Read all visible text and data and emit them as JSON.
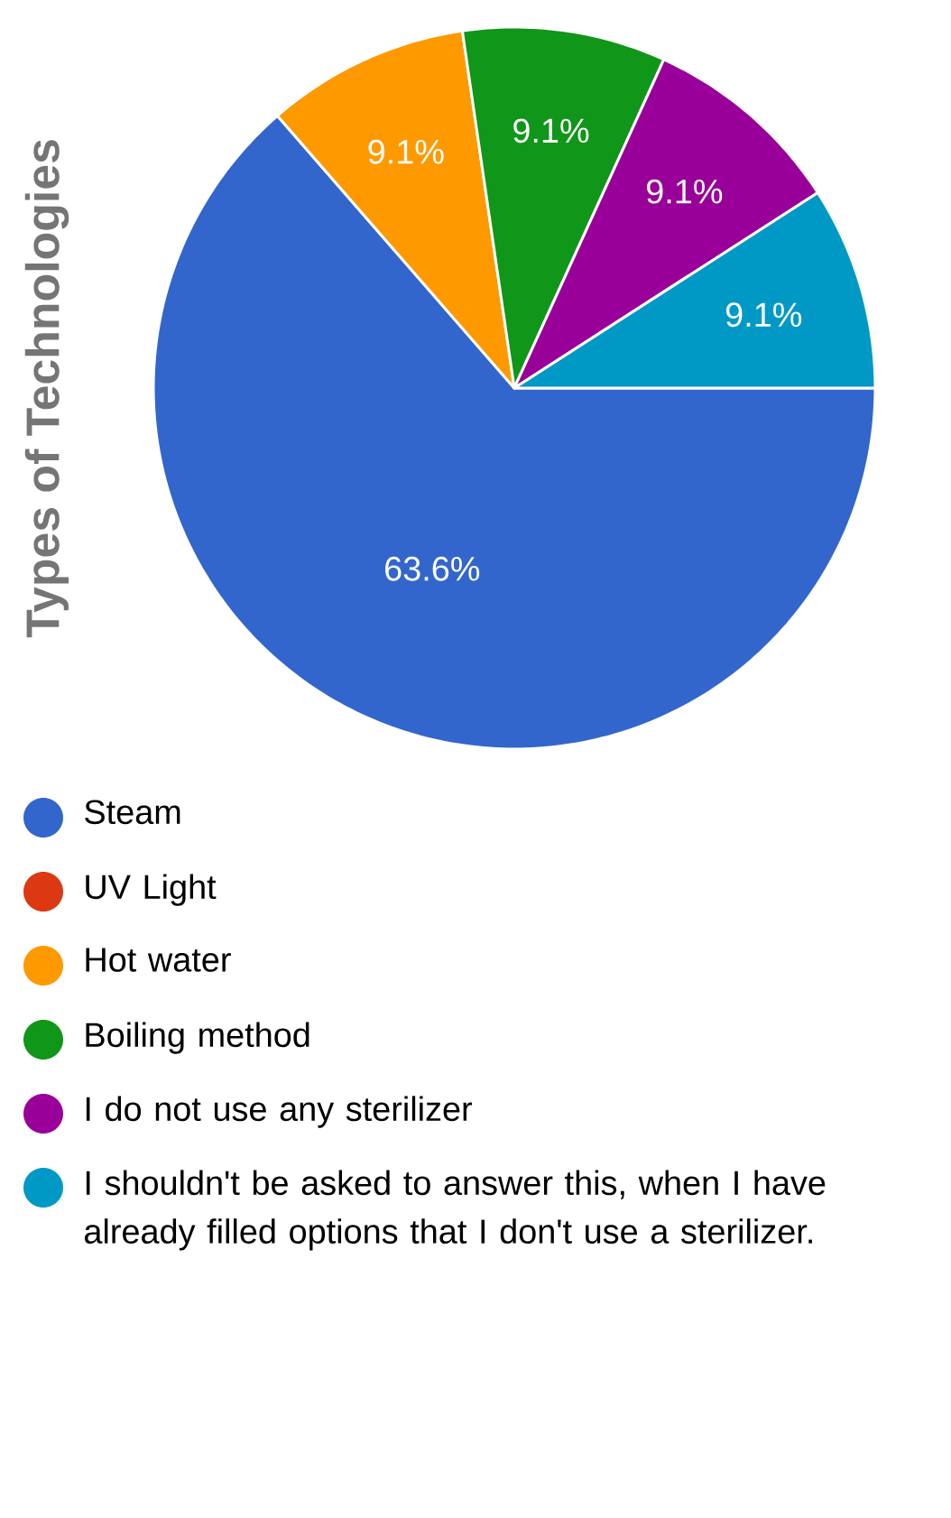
{
  "chart_data": {
    "type": "pie",
    "ylabel": "Types of Technologies",
    "categories": [
      "Steam",
      "UV Light",
      "Hot water",
      "Boiling method",
      "I do not use any sterilizer",
      "I shouldn't be asked to answer this, when I have already filled options that I don't use a sterilizer."
    ],
    "values": [
      63.6,
      0,
      9.1,
      9.1,
      9.1,
      9.1
    ],
    "value_labels": [
      "63.6%",
      null,
      "9.1%",
      "9.1%",
      "9.1%",
      "9.1%"
    ],
    "colors": [
      "#3366cc",
      "#dc3912",
      "#ff9900",
      "#109618",
      "#990099",
      "#0099c6"
    ],
    "legend": "bottom"
  }
}
